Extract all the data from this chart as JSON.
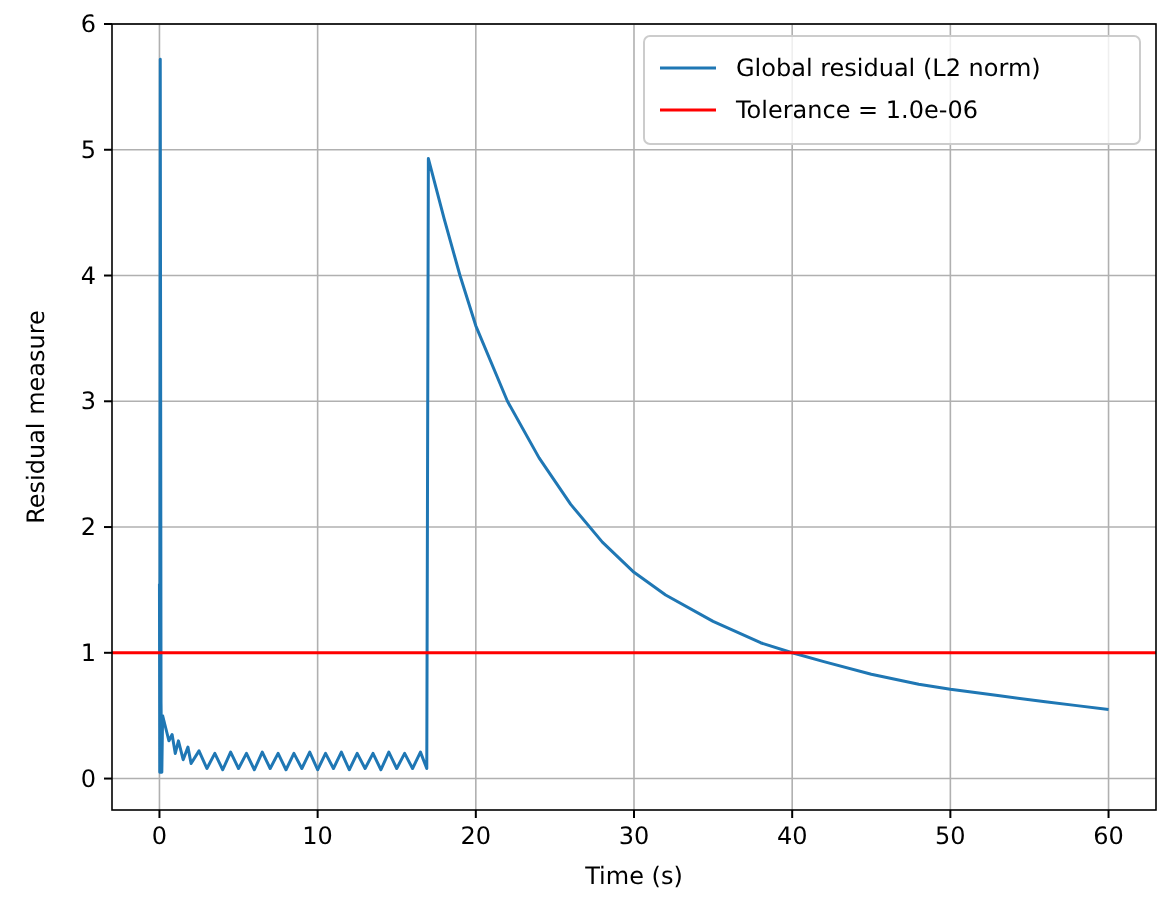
{
  "chart_data": {
    "type": "line",
    "xlabel": "Time (s)",
    "ylabel": "Residual measure",
    "xlim": [
      -3,
      63
    ],
    "ylim": [
      -0.25,
      6
    ],
    "xticks": [
      0,
      10,
      20,
      30,
      40,
      50,
      60
    ],
    "yticks": [
      0,
      1,
      2,
      3,
      4,
      5,
      6
    ],
    "grid": true,
    "legend": "top right",
    "line_style": "solid",
    "marker": "none",
    "x": [
      0,
      0.02,
      0.05,
      0.1,
      0.15,
      0.2,
      0.4,
      0.6,
      0.8,
      1,
      1.2,
      1.5,
      1.8,
      2,
      2.5,
      3,
      3.5,
      4,
      4.5,
      5,
      5.5,
      6,
      6.5,
      7,
      7.5,
      8,
      8.5,
      9,
      9.5,
      10,
      10.5,
      11,
      11.5,
      12,
      12.5,
      13,
      13.5,
      14,
      14.5,
      15,
      15.5,
      16,
      16.5,
      16.9,
      17,
      18,
      19,
      20,
      22,
      24,
      26,
      28,
      30,
      32,
      35,
      38,
      40,
      42,
      45,
      48,
      50,
      53,
      56,
      58,
      60
    ],
    "series": [
      {
        "name": "Global residual (L2 norm)",
        "color": "#1f77b4",
        "values": [
          1.55,
          0.05,
          5.72,
          0.6,
          0.05,
          0.5,
          0.4,
          0.3,
          0.35,
          0.2,
          0.3,
          0.15,
          0.25,
          0.12,
          0.22,
          0.08,
          0.2,
          0.07,
          0.21,
          0.08,
          0.2,
          0.07,
          0.21,
          0.08,
          0.2,
          0.07,
          0.2,
          0.08,
          0.21,
          0.07,
          0.2,
          0.08,
          0.21,
          0.07,
          0.2,
          0.08,
          0.2,
          0.07,
          0.21,
          0.08,
          0.2,
          0.08,
          0.21,
          0.08,
          4.93,
          4.45,
          4.0,
          3.6,
          3.0,
          2.55,
          2.18,
          1.88,
          1.64,
          1.46,
          1.25,
          1.08,
          1.0,
          0.93,
          0.83,
          0.75,
          0.71,
          0.66,
          0.61,
          0.58,
          0.55
        ]
      }
    ],
    "ref_lines": [
      {
        "axis": "y",
        "value": 1,
        "label": "Tolerance = 1.0e-06",
        "color": "#ff0000",
        "line_style": "solid"
      }
    ]
  }
}
